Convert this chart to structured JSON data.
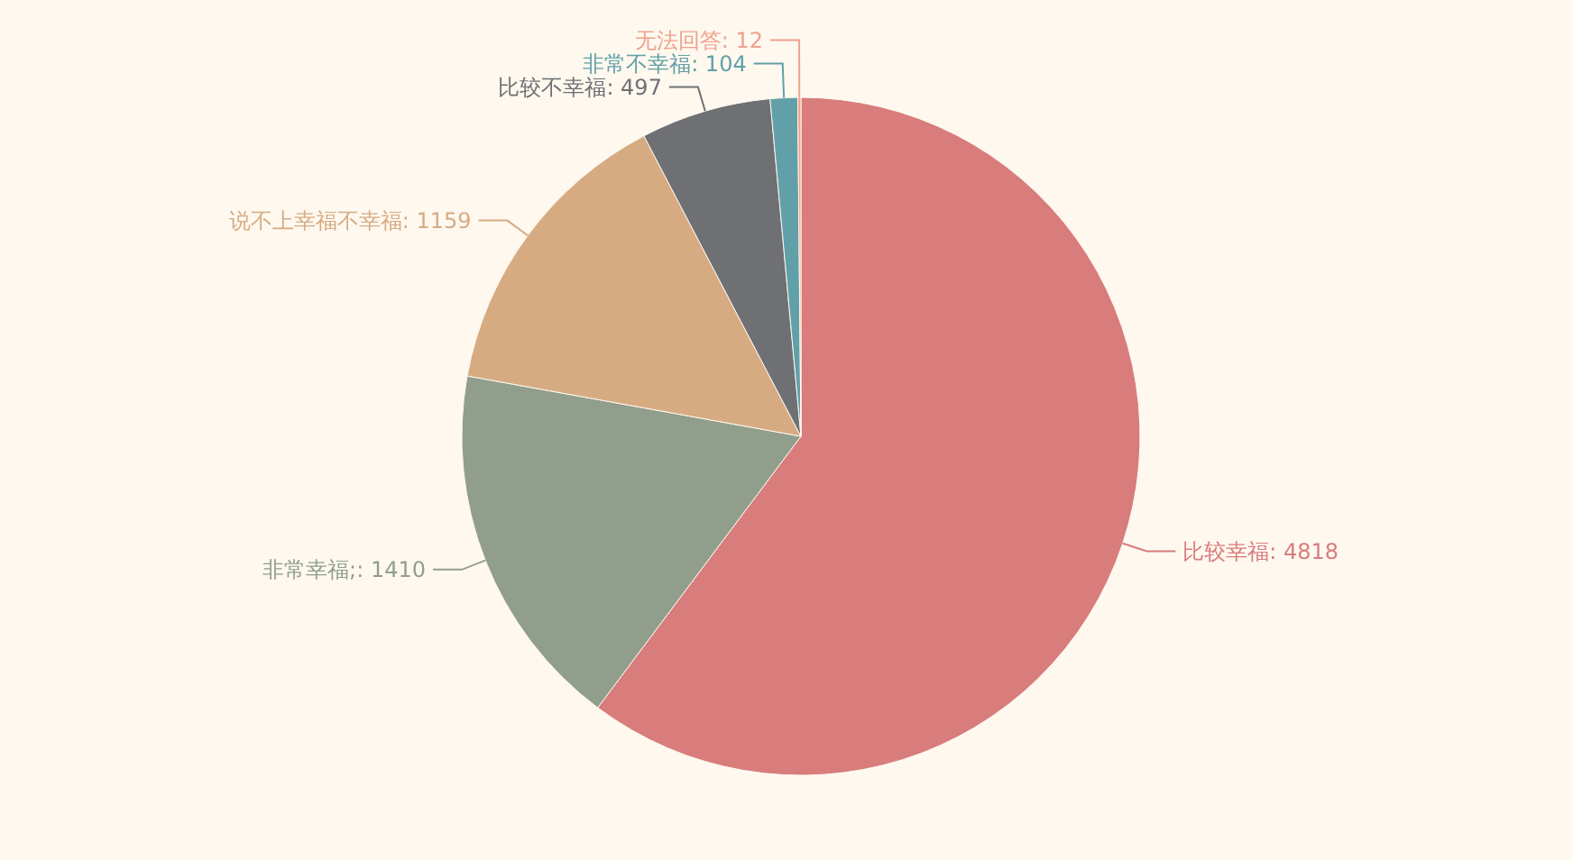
{
  "chart_data": {
    "type": "pie",
    "categories": [
      "比较幸福",
      "非常幸福",
      "说不上幸福不幸福",
      "比较不幸福",
      "非常不幸福",
      "无法回答"
    ],
    "values": [
      4818,
      1410,
      1159,
      497,
      104,
      12
    ],
    "colors": [
      "#d87c7c",
      "#919e8b",
      "#d7ab82",
      "#6e7074",
      "#61a0a8",
      "#efa18d"
    ],
    "value_labels": [
      ": 4818",
      ";: 1410",
      ": 1159",
      ": 497",
      ": 104",
      ": 12"
    ]
  }
}
